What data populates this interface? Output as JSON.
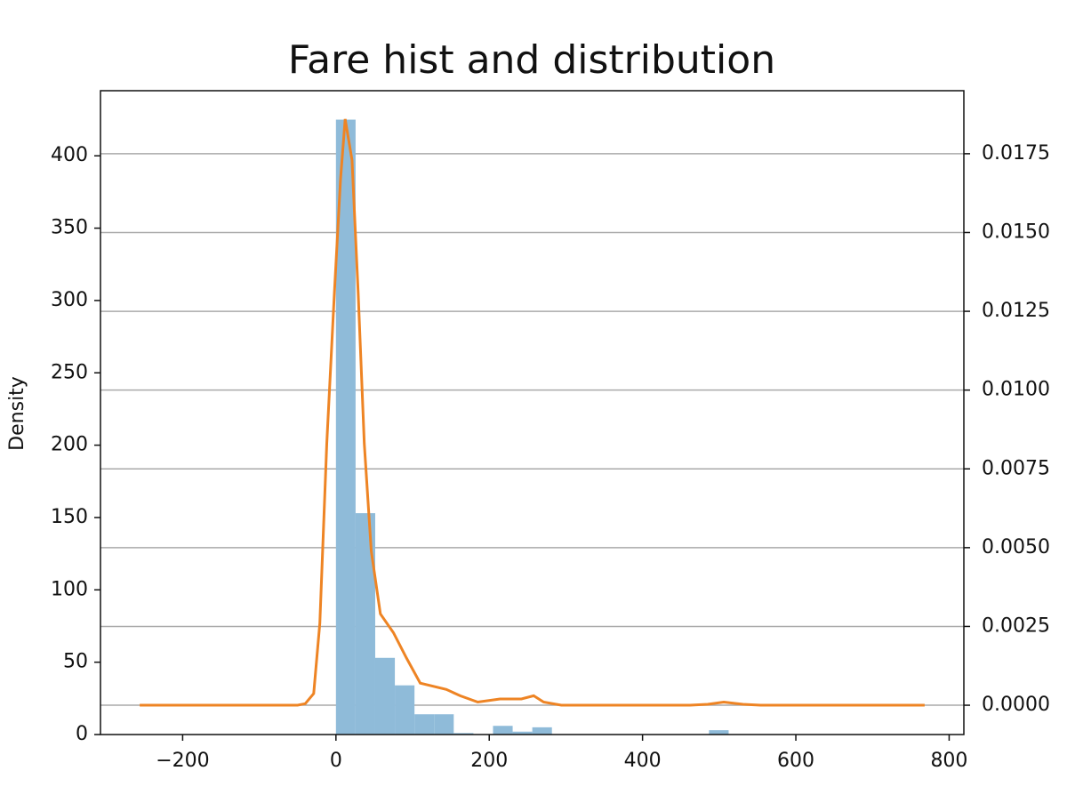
{
  "chart_data": {
    "type": "histogram",
    "title": "Fare hist and distribution",
    "ylabel": "Density",
    "bins": [
      0,
      25.62,
      51.23,
      76.85,
      102.47,
      128.08,
      153.7,
      179.32,
      204.93,
      230.55,
      256.17,
      281.78,
      307.4,
      333.02,
      358.63,
      384.25,
      409.86,
      435.48,
      461.1,
      486.71,
      512.33
    ],
    "counts": [
      425,
      153,
      53,
      34,
      14,
      14,
      1,
      0,
      6,
      2,
      5,
      0,
      0,
      0,
      0,
      0,
      0,
      0,
      0,
      3
    ],
    "color": "#8fbbd9",
    "line": {
      "type": "line",
      "axis": "y2",
      "color": "#ee8424",
      "x": [
        -256,
        -50,
        -40,
        -29,
        -21,
        -12,
        -2,
        6,
        12,
        21,
        29,
        37,
        46,
        58,
        75,
        92,
        110,
        144,
        162,
        185,
        214,
        242,
        258,
        271,
        294,
        462,
        485,
        506,
        531,
        554,
        768
      ],
      "values": [
        0,
        0,
        5e-05,
        0.00037,
        0.0026,
        0.0083,
        0.0131,
        0.0167,
        0.0186,
        0.0173,
        0.0131,
        0.0083,
        0.0049,
        0.0029,
        0.0023,
        0.0015,
        0.0007,
        0.0005,
        0.0003,
        0.0001,
        0.0002,
        0.0002,
        0.0003,
        0.0001,
        0,
        0,
        3e-05,
        0.0001,
        3e-05,
        0,
        0
      ]
    },
    "xlim": [
      -307.2,
      819.2
    ],
    "xticks": [
      {
        "value": -200,
        "label": "−200"
      },
      0,
      200,
      400,
      600,
      800
    ],
    "ylim": [
      0,
      445
    ],
    "yticks": [
      0,
      50,
      100,
      150,
      200,
      250,
      300,
      350,
      400
    ],
    "y2lim": [
      -0.00093,
      0.0195
    ],
    "y2ticks": [
      {
        "value": 0,
        "label": "0.0000"
      },
      0.0025,
      {
        "value": 0.005,
        "label": "0.0050"
      },
      0.0075,
      {
        "value": 0.01,
        "label": "0.0100"
      },
      0.0125,
      {
        "value": 0.015,
        "label": "0.0150"
      },
      0.0175
    ],
    "grid": "y2"
  }
}
